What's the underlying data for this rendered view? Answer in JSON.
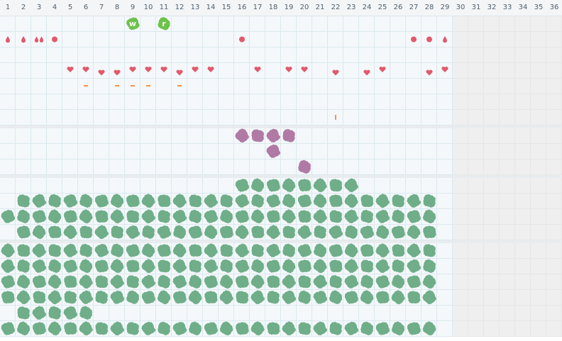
{
  "colors": {
    "blood": "#e05a6a",
    "heart": "#e05a6a",
    "dash": "#f29350",
    "tag_green": "#6cc24a",
    "blob_purple": "#b07aa5",
    "blob_green": "#6fae88"
  },
  "grid": {
    "columns": 36,
    "active_columns": 29,
    "header_labels": [
      "1",
      "2",
      "3",
      "4",
      "5",
      "6",
      "7",
      "8",
      "9",
      "10",
      "11",
      "12",
      "13",
      "14",
      "15",
      "16",
      "17",
      "18",
      "19",
      "20",
      "21",
      "22",
      "23",
      "24",
      "25",
      "26",
      "27",
      "28",
      "29",
      "30",
      "31",
      "32",
      "33",
      "34",
      "35",
      "36"
    ]
  },
  "sections": [
    {
      "name": "symptoms",
      "rows": [
        {
          "marks": [
            {
              "c": 9,
              "k": "tag",
              "t": "w"
            },
            {
              "c": 11,
              "k": "tag",
              "t": "r"
            }
          ]
        },
        {
          "marks": [
            {
              "c": 1,
              "k": "drop"
            },
            {
              "c": 2,
              "k": "drop"
            },
            {
              "c": 3,
              "k": "drop2"
            },
            {
              "c": 4,
              "k": "dot"
            },
            {
              "c": 16,
              "k": "dot"
            },
            {
              "c": 27,
              "k": "dot"
            },
            {
              "c": 28,
              "k": "dot"
            },
            {
              "c": 29,
              "k": "drop"
            }
          ]
        },
        {
          "marks": []
        },
        {
          "marks": [
            {
              "c": 5,
              "k": "heart-hi"
            },
            {
              "c": 6,
              "k": "heart-hi"
            },
            {
              "c": 7,
              "k": "heart-lo"
            },
            {
              "c": 8,
              "k": "heart-lo"
            },
            {
              "c": 9,
              "k": "heart-hi"
            },
            {
              "c": 10,
              "k": "heart-hi"
            },
            {
              "c": 11,
              "k": "heart-hi"
            },
            {
              "c": 12,
              "k": "heart-lo"
            },
            {
              "c": 13,
              "k": "heart-hi"
            },
            {
              "c": 14,
              "k": "heart-hi"
            },
            {
              "c": 17,
              "k": "heart-hi"
            },
            {
              "c": 19,
              "k": "heart-hi"
            },
            {
              "c": 20,
              "k": "heart-hi"
            },
            {
              "c": 22,
              "k": "heart-lo"
            },
            {
              "c": 24,
              "k": "heart-lo"
            },
            {
              "c": 25,
              "k": "heart-hi"
            },
            {
              "c": 28,
              "k": "heart-lo"
            },
            {
              "c": 29,
              "k": "heart-hi"
            }
          ]
        },
        {
          "marks": [
            {
              "c": 6,
              "k": "dash-h"
            },
            {
              "c": 8,
              "k": "dash-h"
            },
            {
              "c": 9,
              "k": "dash-h"
            },
            {
              "c": 10,
              "k": "dash-h"
            },
            {
              "c": 12,
              "k": "dash-h"
            }
          ]
        },
        {
          "marks": []
        },
        {
          "marks": [
            {
              "c": 22,
              "k": "dash-v"
            }
          ]
        }
      ]
    },
    {
      "name": "purple-blobs",
      "rows": [
        {
          "marks": [
            {
              "c": 16,
              "k": "blob-purple"
            },
            {
              "c": 17,
              "k": "blob-purple"
            },
            {
              "c": 18,
              "k": "blob-purple"
            },
            {
              "c": 19,
              "k": "blob-purple"
            }
          ]
        },
        {
          "marks": [
            {
              "c": 18,
              "k": "blob-purple"
            }
          ]
        },
        {
          "marks": [
            {
              "c": 20,
              "k": "blob-purple"
            }
          ]
        }
      ]
    },
    {
      "name": "green-blobs-a",
      "rows": [
        {
          "ranges": [
            [
              16,
              23
            ]
          ]
        },
        {
          "ranges": [
            [
              2,
              28
            ]
          ]
        },
        {
          "ranges": [
            [
              1,
              28
            ]
          ]
        },
        {
          "ranges": [
            [
              2,
              28
            ]
          ]
        }
      ]
    },
    {
      "name": "green-blobs-b",
      "rows": [
        {
          "ranges": [
            [
              1,
              28
            ]
          ]
        },
        {
          "ranges": [
            [
              1,
              28
            ]
          ]
        },
        {
          "ranges": [
            [
              1,
              28
            ]
          ]
        },
        {
          "ranges": [
            [
              1,
              28
            ]
          ]
        },
        {
          "ranges": [
            [
              2,
              6
            ]
          ]
        },
        {
          "ranges": [
            [
              1,
              28
            ]
          ]
        }
      ]
    }
  ]
}
